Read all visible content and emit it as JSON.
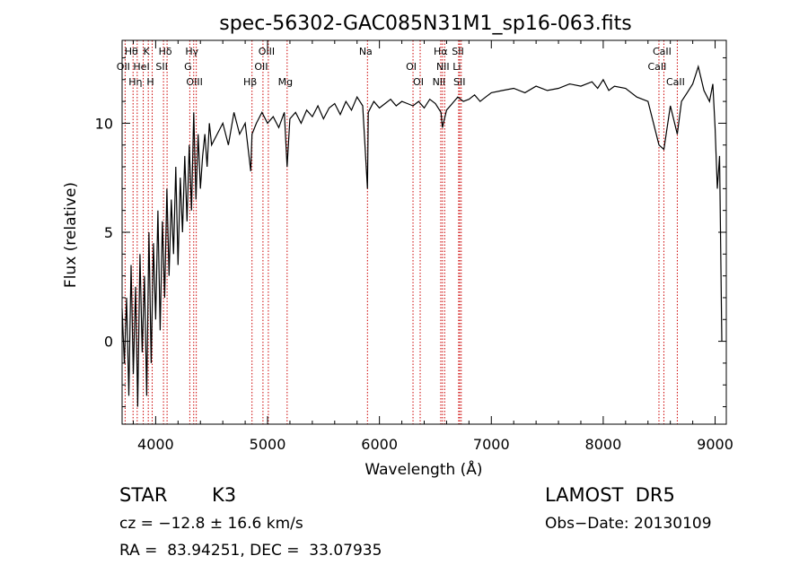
{
  "chart_data": {
    "type": "line",
    "title": "spec-56302-GAC085N31M1_sp16-063.fits",
    "xlabel": "Wavelength (Å)",
    "ylabel": "Flux (relative)",
    "xlim": [
      3700,
      9100
    ],
    "ylim": [
      -3.8,
      13.8
    ],
    "xticks": [
      4000,
      5000,
      6000,
      7000,
      8000,
      9000
    ],
    "yticks": [
      0,
      5,
      10
    ],
    "grid": false,
    "legend": "none",
    "line_color": "#000000",
    "marker_line_color": "#cc0000",
    "series": [
      {
        "x": [
          3700,
          3720,
          3740,
          3760,
          3780,
          3800,
          3820,
          3840,
          3860,
          3880,
          3900,
          3920,
          3940,
          3960,
          3980,
          4000,
          4020,
          4040,
          4060,
          4080,
          4100,
          4120,
          4140,
          4160,
          4180,
          4200,
          4220,
          4240,
          4260,
          4280,
          4300,
          4320,
          4340,
          4360,
          4380,
          4400,
          4420,
          4440,
          4460,
          4480,
          4500,
          4550,
          4600,
          4650,
          4700,
          4750,
          4800,
          4850,
          4861,
          4900,
          4950,
          5000,
          5050,
          5100,
          5150,
          5175,
          5200,
          5250,
          5300,
          5350,
          5400,
          5450,
          5500,
          5550,
          5600,
          5650,
          5700,
          5750,
          5800,
          5850,
          5893,
          5900,
          5950,
          6000,
          6050,
          6100,
          6150,
          6200,
          6250,
          6300,
          6350,
          6400,
          6450,
          6500,
          6550,
          6563,
          6600,
          6650,
          6700,
          6750,
          6800,
          6850,
          6900,
          6950,
          7000,
          7100,
          7200,
          7300,
          7400,
          7500,
          7600,
          7700,
          7800,
          7900,
          7950,
          8000,
          8050,
          8100,
          8200,
          8300,
          8400,
          8498,
          8542,
          8600,
          8662,
          8700,
          8750,
          8800,
          8850,
          8900,
          8950,
          8980,
          9000,
          9020,
          9040,
          9060
        ],
        "y": [
          1.5,
          -1.0,
          2.0,
          -2.5,
          3.5,
          -1.5,
          2.5,
          -3.0,
          4.0,
          -0.5,
          3.0,
          -2.5,
          5.0,
          -1.0,
          4.5,
          1.0,
          6.0,
          0.5,
          5.5,
          2.0,
          7.0,
          3.0,
          6.5,
          4.0,
          8.0,
          3.5,
          7.5,
          5.0,
          8.5,
          5.5,
          9.0,
          6.0,
          10.5,
          6.5,
          9.5,
          7.0,
          8.5,
          9.5,
          8.0,
          10.0,
          9.0,
          9.5,
          10.0,
          9.0,
          10.5,
          9.5,
          10.0,
          7.8,
          9.5,
          10.0,
          10.5,
          10.0,
          10.3,
          9.8,
          10.5,
          8.0,
          10.2,
          10.5,
          10.0,
          10.6,
          10.3,
          10.8,
          10.2,
          10.7,
          10.9,
          10.4,
          11.0,
          10.6,
          11.2,
          10.8,
          7.0,
          10.5,
          11.0,
          10.7,
          10.9,
          11.1,
          10.8,
          11.0,
          10.9,
          10.8,
          11.0,
          10.7,
          11.1,
          10.9,
          10.5,
          9.8,
          10.6,
          10.9,
          11.2,
          11.0,
          11.1,
          11.3,
          11.0,
          11.2,
          11.4,
          11.5,
          11.6,
          11.4,
          11.7,
          11.5,
          11.6,
          11.8,
          11.7,
          11.9,
          11.6,
          12.0,
          11.5,
          11.7,
          11.6,
          11.2,
          11.0,
          9.0,
          8.8,
          10.8,
          9.5,
          11.0,
          11.4,
          11.8,
          12.6,
          11.5,
          11.0,
          11.8,
          9.8,
          7.0,
          8.5,
          0.0
        ]
      }
    ],
    "line_markers": [
      {
        "name": "Hθ",
        "x": 3798
      },
      {
        "name": "OII",
        "x": 3727
      },
      {
        "name": "Hη",
        "x": 3835
      },
      {
        "name": "K",
        "x": 3934
      },
      {
        "name": "HeI",
        "x": 3889
      },
      {
        "name": "H",
        "x": 3969
      },
      {
        "name": "Hδ",
        "x": 4102
      },
      {
        "name": "SII",
        "x": 4070
      },
      {
        "name": "OIII",
        "x": 4363
      },
      {
        "name": "Hγ",
        "x": 4340
      },
      {
        "name": "G",
        "x": 4305
      },
      {
        "name": "Hβ",
        "x": 4861
      },
      {
        "name": "OIII",
        "x": 5007
      },
      {
        "name": "OII",
        "x": 4959
      },
      {
        "name": "Mg",
        "x": 5175
      },
      {
        "name": "Na",
        "x": 5893
      },
      {
        "name": "OI",
        "x": 6300
      },
      {
        "name": "OI",
        "x": 6364
      },
      {
        "name": "Hα",
        "x": 6563
      },
      {
        "name": "NII",
        "x": 6583
      },
      {
        "name": "NII",
        "x": 6548
      },
      {
        "name": "SII",
        "x": 6717
      },
      {
        "name": "Li",
        "x": 6708
      },
      {
        "name": "SII",
        "x": 6731
      },
      {
        "name": "CaII",
        "x": 8542
      },
      {
        "name": "CaII",
        "x": 8498
      },
      {
        "name": "CaII",
        "x": 8662
      }
    ]
  },
  "info": {
    "class_label": "STAR",
    "subclass": "K3",
    "survey": "LAMOST  DR5",
    "cz_text": "cz = −12.8 ± 16.6 km/s",
    "obs_date_text": "Obs−Date: 20130109",
    "coords_text": "RA =  83.94251, DEC =  33.07935"
  }
}
